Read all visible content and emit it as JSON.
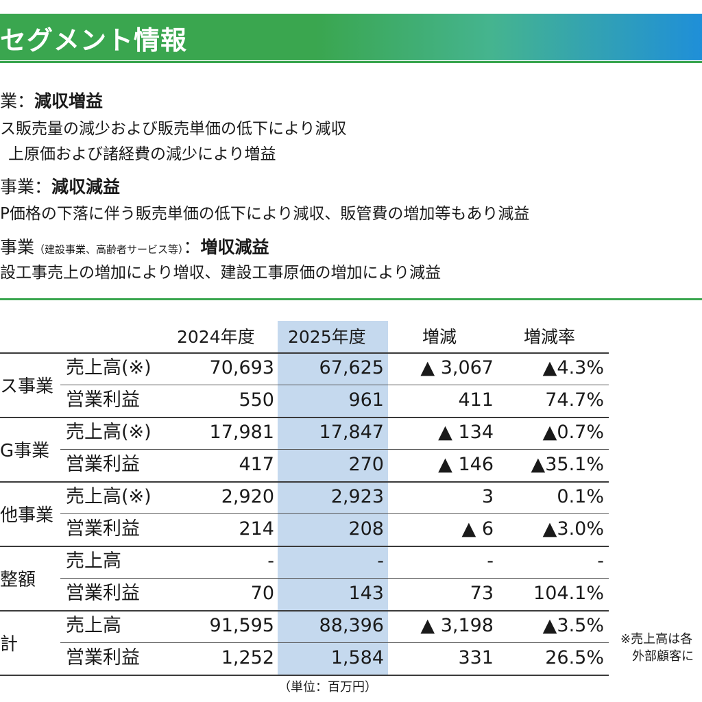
{
  "header": {
    "title": "セグメント情報"
  },
  "segments": [
    {
      "name": "業",
      "note": "",
      "verdict": "減収増益",
      "lines": [
        "ス販売量の減少および販売単価の低下により減収",
        "上原価および諸経費の減少により増益"
      ]
    },
    {
      "name": "事業",
      "note": "",
      "verdict": "減収減益",
      "lines": [
        "P価格の下落に伴う販売単価の低下により減収、販管費の増加等もあり減益"
      ]
    },
    {
      "name": "事業",
      "note": "（建設事業、高齢者サービス等）",
      "verdict": "増収減益",
      "lines": [
        "設工事売上の増加により増収、建設工事原価の増加により減益"
      ]
    }
  ],
  "table": {
    "headers": [
      "2024年度",
      "2025年度",
      "増減",
      "増減率"
    ],
    "groups": [
      {
        "label": "ス事業",
        "rows": [
          {
            "item": "売上高(※)",
            "values": [
              "70,693",
              "67,625",
              "▲ 3,067",
              "▲4.3%"
            ]
          },
          {
            "item": "営業利益",
            "values": [
              "550",
              "961",
              "411",
              "74.7%"
            ]
          }
        ]
      },
      {
        "label": "G事業",
        "rows": [
          {
            "item": "売上高(※)",
            "values": [
              "17,981",
              "17,847",
              "▲ 134",
              "▲0.7%"
            ]
          },
          {
            "item": "営業利益",
            "values": [
              "417",
              "270",
              "▲ 146",
              "▲35.1%"
            ]
          }
        ]
      },
      {
        "label": "他事業",
        "rows": [
          {
            "item": "売上高(※)",
            "values": [
              "2,920",
              "2,923",
              "3",
              "0.1%"
            ]
          },
          {
            "item": "営業利益",
            "values": [
              "214",
              "208",
              "▲ 6",
              "▲3.0%"
            ]
          }
        ]
      },
      {
        "label": "整額",
        "rows": [
          {
            "item": "売上高",
            "values": [
              "-",
              "-",
              "-",
              "-"
            ]
          },
          {
            "item": "営業利益",
            "values": [
              "70",
              "143",
              "73",
              "104.1%"
            ]
          }
        ]
      },
      {
        "label": "計",
        "rows": [
          {
            "item": "売上高",
            "values": [
              "91,595",
              "88,396",
              "▲ 3,198",
              "▲3.5%"
            ]
          },
          {
            "item": "営業利益",
            "values": [
              "1,252",
              "1,584",
              "331",
              "26.5%"
            ]
          }
        ]
      }
    ],
    "unit": "（単位：百万円）"
  },
  "footnote": [
    "※売上高は各",
    "外部顧客に"
  ]
}
